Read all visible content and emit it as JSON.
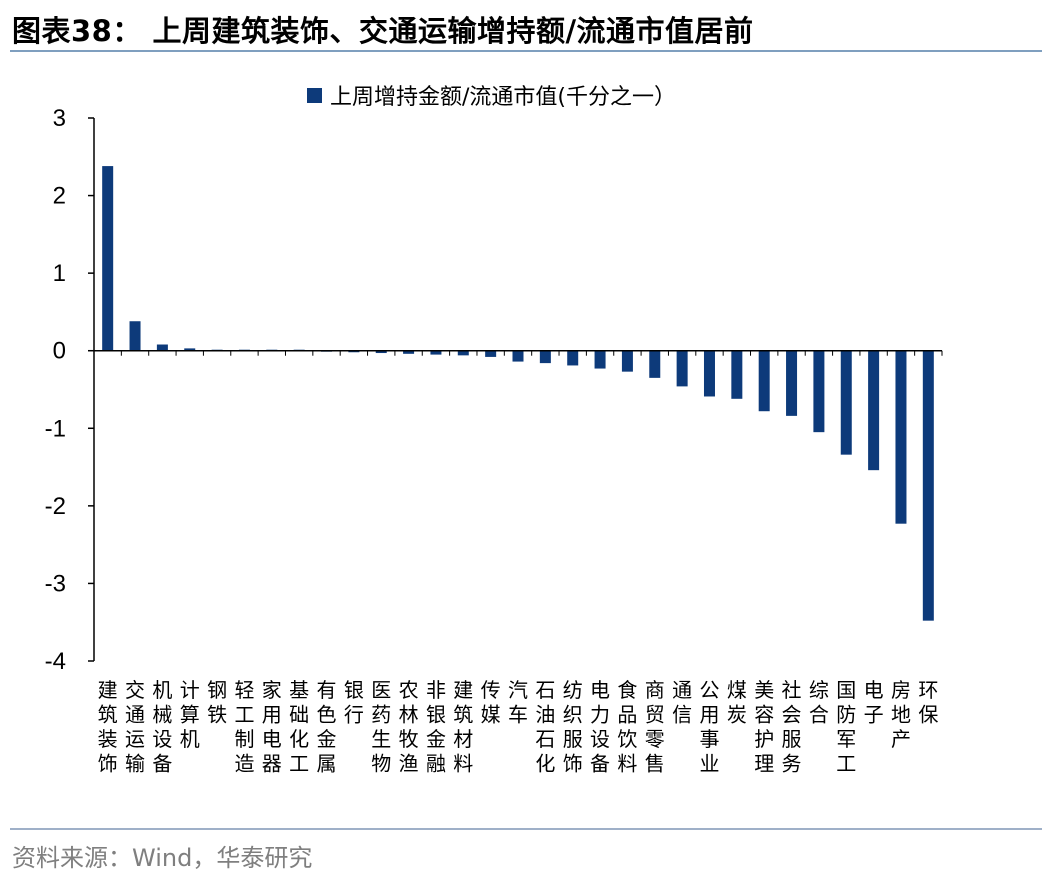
{
  "header": {
    "title": "图表38：  上周建筑装饰、交通运输增持额/流通市值居前"
  },
  "footer": {
    "source": "资料来源：Wind，华泰研究"
  },
  "colors": {
    "bar": "#0d3a7a",
    "axis": "#000000",
    "title_rule": "#7f9fbf",
    "source_text": "#7f7f7f"
  },
  "chart_data": {
    "type": "bar",
    "title": "",
    "xlabel": "",
    "ylabel": "",
    "ylim": [
      -4,
      3
    ],
    "yticks": [
      3,
      2,
      1,
      0,
      -1,
      -2,
      -3,
      -4
    ],
    "grid": false,
    "legend_position": "top-center",
    "categories": [
      "建筑装饰",
      "交通运输",
      "机械设备",
      "计算机",
      "钢铁",
      "轻工制造",
      "家用电器",
      "基础化工",
      "有色金属",
      "银行",
      "医药生物",
      "农林牧渔",
      "非银金融",
      "建筑材料",
      "传媒",
      "汽车",
      "石油石化",
      "纺织服饰",
      "电力设备",
      "食品饮料",
      "商贸零售",
      "通信",
      "公用事业",
      "煤炭",
      "美容护理",
      "社会服务",
      "综合",
      "国防军工",
      "电子",
      "房地产",
      "环保"
    ],
    "series": [
      {
        "name": "上周增持金额/流通市值(千分之一）",
        "values": [
          2.38,
          0.38,
          0.08,
          0.03,
          0.01,
          0.0,
          0.0,
          0.0,
          -0.01,
          -0.02,
          -0.03,
          -0.04,
          -0.05,
          -0.06,
          -0.08,
          -0.14,
          -0.16,
          -0.19,
          -0.23,
          -0.27,
          -0.35,
          -0.46,
          -0.59,
          -0.62,
          -0.78,
          -0.84,
          -1.05,
          -1.34,
          -1.54,
          -2.23,
          -3.48
        ]
      }
    ]
  }
}
